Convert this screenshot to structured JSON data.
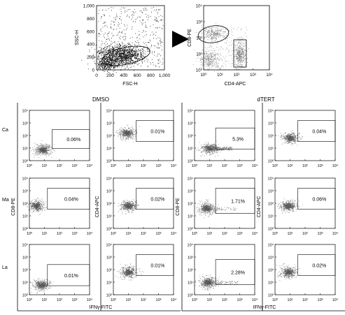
{
  "chart_data": {
    "type": "scatter",
    "top": {
      "scatter_plot": {
        "ylabel": "SSC-H",
        "xlabel": "FSC-H",
        "xticks": [
          "0",
          "200",
          "400",
          "600",
          "800",
          "1,000"
        ],
        "yticks": [
          "0",
          "200",
          "400",
          "600",
          "800",
          "1,000"
        ],
        "xlim": [
          0,
          1000
        ],
        "ylim": [
          0,
          1000
        ]
      },
      "gate_plot": {
        "ylabel": "CD8-PE",
        "xlabel": "CD4-APC",
        "xticks": [
          "10⁰",
          "10¹",
          "10²",
          "10³",
          "10⁴"
        ],
        "yticks": [
          "10⁰",
          "10¹",
          "10²",
          "10³",
          "10⁴"
        ],
        "scale": "log",
        "xlim": [
          1,
          10000
        ],
        "ylim": [
          1,
          10000
        ]
      }
    },
    "conditions": [
      "DMSO",
      "dTERT"
    ],
    "rows": [
      "Ca",
      "Ma",
      "La"
    ],
    "log_ticks": [
      "10⁰",
      "10¹",
      "10²",
      "10³",
      "10⁴"
    ],
    "panel_ylabels": [
      "CD8-PE",
      "CD4-APC"
    ],
    "xlabel_grid": "IFNγ-FITC",
    "percentages": [
      [
        "0.06%",
        "0.01%",
        "5.3%",
        "0.04%"
      ],
      [
        "0.04%",
        "0.02%",
        "1.71%",
        "0.06%"
      ],
      [
        "0.01%",
        "0.01%",
        "2.28%",
        "0.02%"
      ]
    ]
  }
}
